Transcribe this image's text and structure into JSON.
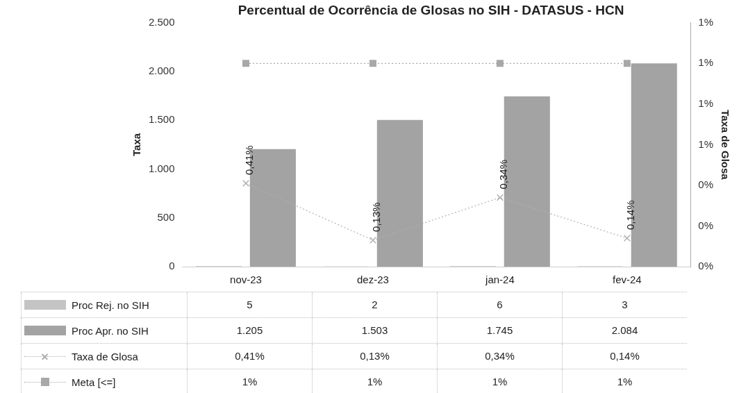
{
  "chart_data": {
    "type": "bar",
    "title": "Percentual de Ocorrência de Glosas no SIH - DATASUS - HCN",
    "ylabel": "Taxa",
    "y2label": "Taxa de Glosa",
    "categories": [
      "nov-23",
      "dez-23",
      "jan-24",
      "fev-24"
    ],
    "series": [
      {
        "name": "Proc Rej. no SIH",
        "color": "#c4c4c4",
        "values": [
          5,
          2,
          6,
          3
        ],
        "value_labels": [
          "5",
          "2",
          "6",
          "3"
        ]
      },
      {
        "name": "Proc Apr. no SIH",
        "color": "#a3a3a3",
        "values": [
          1205,
          1503,
          1745,
          2084
        ],
        "value_labels": [
          "1.205",
          "1.503",
          "1.745",
          "2.084"
        ]
      },
      {
        "name": "Taxa de Glosa",
        "type": "line",
        "axis": "y2",
        "color": "#b0b0b0",
        "marker": "cross",
        "line_style": "dotted",
        "values": [
          0.41,
          0.13,
          0.34,
          0.14
        ],
        "value_labels": [
          "0,41%",
          "0,13%",
          "0,34%",
          "0,14%"
        ]
      },
      {
        "name": "Meta [<=]",
        "type": "line",
        "axis": "y2",
        "color": "#a8a8a8",
        "marker": "square",
        "line_style": "dotted",
        "values": [
          1,
          1,
          1,
          1
        ],
        "value_labels": [
          "1%",
          "1%",
          "1%",
          "1%"
        ]
      }
    ],
    "ylim": [
      0,
      2500
    ],
    "yticks": [
      0,
      500,
      {
        "value": 1000,
        "label": "1.000"
      },
      {
        "value": 1500,
        "label": "1.500"
      },
      {
        "value": 2000,
        "label": "2.000"
      },
      {
        "value": 2500,
        "label": "2.500"
      }
    ],
    "y2lim": [
      0,
      1.2
    ],
    "y2ticks": [
      {
        "value": 0,
        "label": "0%"
      },
      {
        "value": 0.2,
        "label": "0%"
      },
      {
        "value": 0.4,
        "label": "0%"
      },
      {
        "value": 0.6,
        "label": "1%"
      },
      {
        "value": 0.8,
        "label": "1%"
      },
      {
        "value": 1.0,
        "label": "1%"
      },
      {
        "value": 1.2,
        "label": "1%"
      }
    ],
    "grid": false,
    "legend": "bottom"
  }
}
